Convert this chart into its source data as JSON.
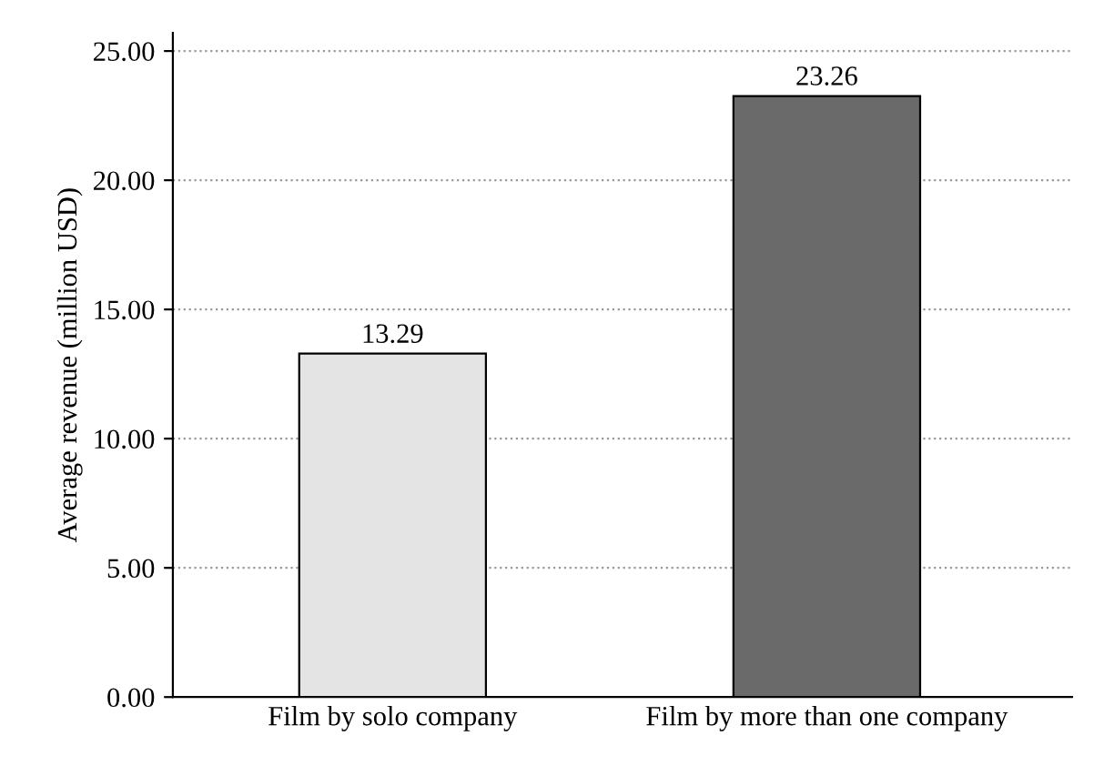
{
  "chart_data": {
    "type": "bar",
    "ylabel": "Average revenue (million USD)",
    "categories": [
      "Film by solo company",
      "Film by more than one company"
    ],
    "values": [
      13.29,
      23.26
    ],
    "colors": [
      "#e4e4e4",
      "#6a6a6a"
    ],
    "data_labels": true,
    "ylim": [
      0,
      25.7
    ],
    "yticks": [
      {
        "value": 0,
        "label": "0.00"
      },
      {
        "value": 5,
        "label": "5.00"
      },
      {
        "value": 10,
        "label": "10.00"
      },
      {
        "value": 15,
        "label": "15.00"
      },
      {
        "value": 20,
        "label": "20.00"
      },
      {
        "value": 25,
        "label": "25.00"
      }
    ],
    "grid": "y"
  }
}
